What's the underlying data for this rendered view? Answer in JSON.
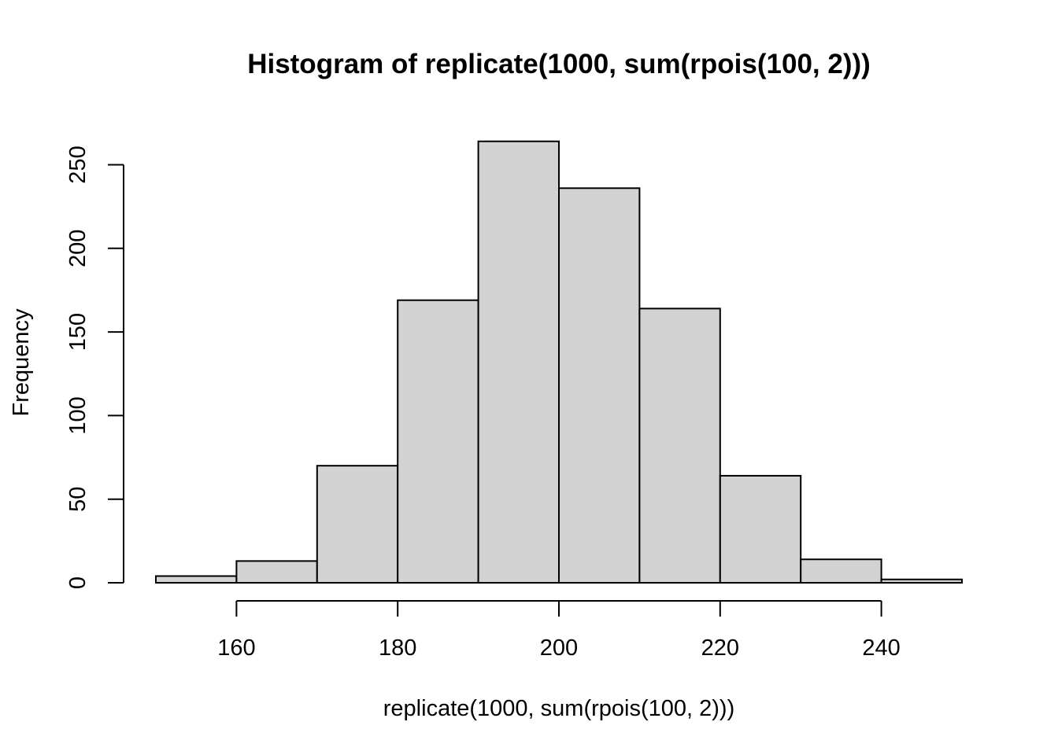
{
  "chart_data": {
    "type": "bar",
    "title": "Histogram of replicate(1000, sum(rpois(100, 2)))",
    "xlabel": "replicate(1000, sum(rpois(100, 2)))",
    "ylabel": "Frequency",
    "bins": [
      {
        "start": 150,
        "end": 160,
        "count": 4
      },
      {
        "start": 160,
        "end": 170,
        "count": 13
      },
      {
        "start": 170,
        "end": 180,
        "count": 70
      },
      {
        "start": 180,
        "end": 190,
        "count": 169
      },
      {
        "start": 190,
        "end": 200,
        "count": 264
      },
      {
        "start": 200,
        "end": 210,
        "count": 236
      },
      {
        "start": 210,
        "end": 220,
        "count": 164
      },
      {
        "start": 220,
        "end": 230,
        "count": 64
      },
      {
        "start": 230,
        "end": 240,
        "count": 14
      },
      {
        "start": 240,
        "end": 250,
        "count": 2
      }
    ],
    "xlim": [
      150,
      250
    ],
    "ylim": [
      0,
      264
    ],
    "xticks": [
      "160",
      "180",
      "200",
      "220",
      "240"
    ],
    "yticks": [
      "0",
      "50",
      "100",
      "150",
      "200",
      "250"
    ],
    "grid": false,
    "colors": {
      "bar_fill": "#d3d3d3",
      "bar_stroke": "#000000"
    }
  }
}
